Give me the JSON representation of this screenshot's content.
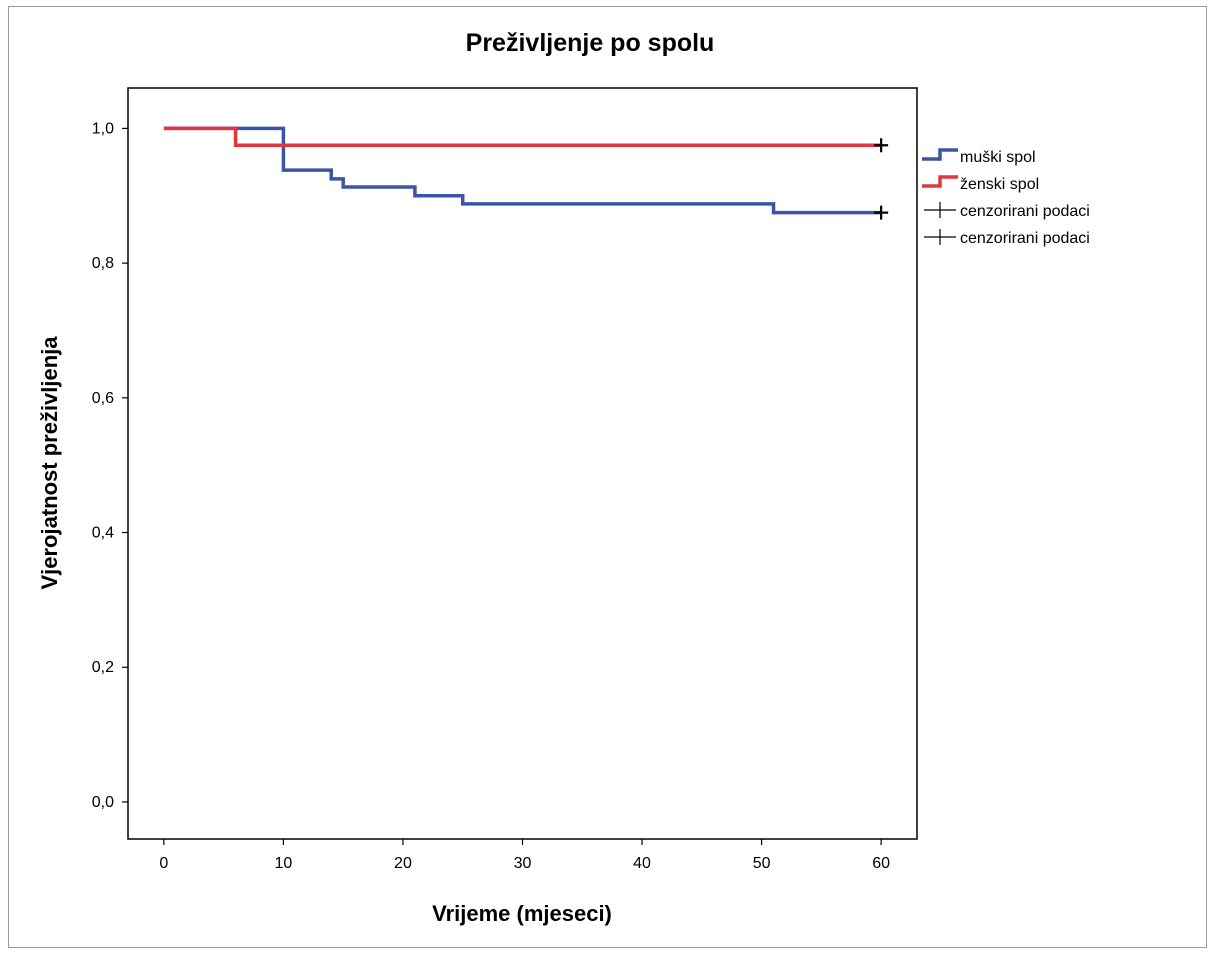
{
  "chart_data": {
    "type": "line",
    "subtype": "kaplan-meier-step",
    "title": "Preživljenje po spolu",
    "xlabel": "Vrijeme (mjeseci)",
    "ylabel": "Vjerojatnost preživljenja",
    "xlim": [
      -3,
      63
    ],
    "ylim": [
      -0.055,
      1.06
    ],
    "x_ticks": [
      0,
      10,
      20,
      30,
      40,
      50,
      60
    ],
    "x_tick_labels": [
      "0",
      "10",
      "20",
      "30",
      "40",
      "50",
      "60"
    ],
    "y_ticks": [
      0.0,
      0.2,
      0.4,
      0.6,
      0.8,
      1.0
    ],
    "y_tick_labels": [
      "0,0",
      "0,2",
      "0,4",
      "0,6",
      "0,8",
      "1,0"
    ],
    "grid": false,
    "legend_position": "right",
    "series": [
      {
        "name": "muški spol",
        "color": "#3a55a4",
        "steps": [
          [
            0,
            1.0
          ],
          [
            10,
            0.938
          ],
          [
            14,
            0.925
          ],
          [
            15,
            0.913
          ],
          [
            21,
            0.9
          ],
          [
            25,
            0.888
          ],
          [
            51,
            0.875
          ]
        ],
        "end_x": 60,
        "censored": [
          [
            60,
            0.875
          ]
        ]
      },
      {
        "name": "ženski spol",
        "color": "#e0363d",
        "steps": [
          [
            0,
            1.0
          ],
          [
            6,
            0.975
          ]
        ],
        "end_x": 60,
        "censored": [
          [
            60,
            0.975
          ]
        ]
      }
    ],
    "legend": [
      {
        "label": "muški spol",
        "kind": "line",
        "color": "#3a55a4"
      },
      {
        "label": "ženski spol",
        "kind": "line",
        "color": "#e0363d"
      },
      {
        "label": "cenzorirani podaci",
        "kind": "censor",
        "color": "#000000"
      },
      {
        "label": "cenzorirani podaci",
        "kind": "censor",
        "color": "#000000"
      }
    ]
  }
}
